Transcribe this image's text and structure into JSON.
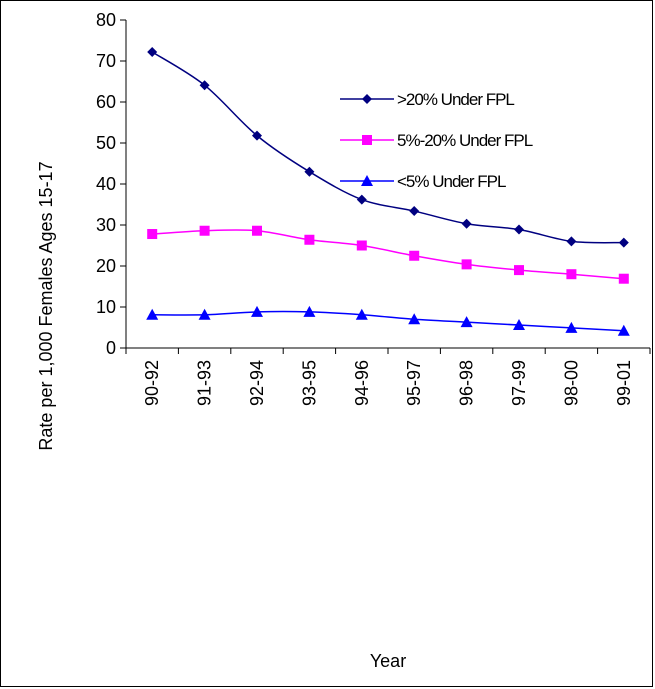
{
  "chart_data": {
    "type": "line",
    "title": "",
    "xlabel": "Year",
    "ylabel": "Rate per 1,000 Females Ages 15-17",
    "ylim": [
      0,
      80
    ],
    "yticks": [
      0,
      10,
      20,
      30,
      40,
      50,
      60,
      70,
      80
    ],
    "categories": [
      "90-92",
      "91-93",
      "92-94",
      "93-95",
      "94-96",
      "95-97",
      "96-98",
      "97-99",
      "98-00",
      "99-01"
    ],
    "legend_position": "top-right",
    "grid": false,
    "series": [
      {
        "name": ">20% Under FPL",
        "color": "#000080",
        "marker": "diamond",
        "values": [
          72.2,
          64.1,
          51.8,
          43.0,
          36.2,
          33.4,
          30.3,
          28.9,
          26.0,
          25.7
        ]
      },
      {
        "name": "5%-20% Under FPL",
        "color": "#ff00ff",
        "marker": "square",
        "values": [
          27.8,
          28.6,
          28.6,
          26.4,
          25.0,
          22.5,
          20.4,
          19.0,
          18.0,
          16.9
        ]
      },
      {
        "name": "<5% Under FPL",
        "color": "#0000ff",
        "marker": "triangle",
        "values": [
          8.1,
          8.1,
          8.8,
          8.8,
          8.1,
          7.0,
          6.3,
          5.6,
          4.9,
          4.2
        ]
      }
    ]
  }
}
